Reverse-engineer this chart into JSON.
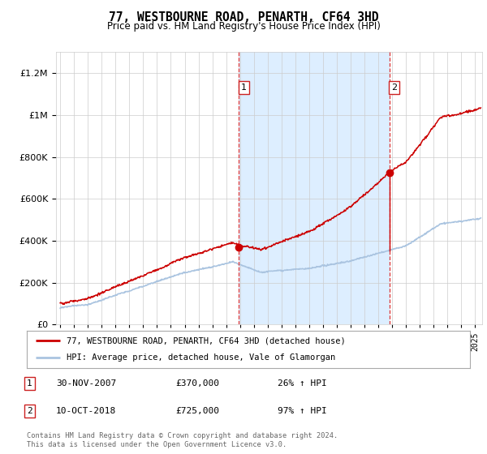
{
  "title": "77, WESTBOURNE ROAD, PENARTH, CF64 3HD",
  "subtitle": "Price paid vs. HM Land Registry's House Price Index (HPI)",
  "ylim": [
    0,
    1300000
  ],
  "yticks": [
    0,
    200000,
    400000,
    600000,
    800000,
    1000000,
    1200000
  ],
  "xlim_start": 1994.7,
  "xlim_end": 2025.5,
  "hpi_color": "#aac4e0",
  "price_color": "#cc0000",
  "purchase1_x": 2007.917,
  "purchase1_y": 370000,
  "purchase2_x": 2018.783,
  "purchase2_y": 725000,
  "legend_line1": "77, WESTBOURNE ROAD, PENARTH, CF64 3HD (detached house)",
  "legend_line2": "HPI: Average price, detached house, Vale of Glamorgan",
  "annotation1_label": "1",
  "annotation1_date": "30-NOV-2007",
  "annotation1_price": "£370,000",
  "annotation1_hpi": "26% ↑ HPI",
  "annotation2_label": "2",
  "annotation2_date": "10-OCT-2018",
  "annotation2_price": "£725,000",
  "annotation2_hpi": "97% ↑ HPI",
  "footer": "Contains HM Land Registry data © Crown copyright and database right 2024.\nThis data is licensed under the Open Government Licence v3.0.",
  "plot_bg_color": "#ffffff",
  "shaded_region_color": "#ddeeff"
}
